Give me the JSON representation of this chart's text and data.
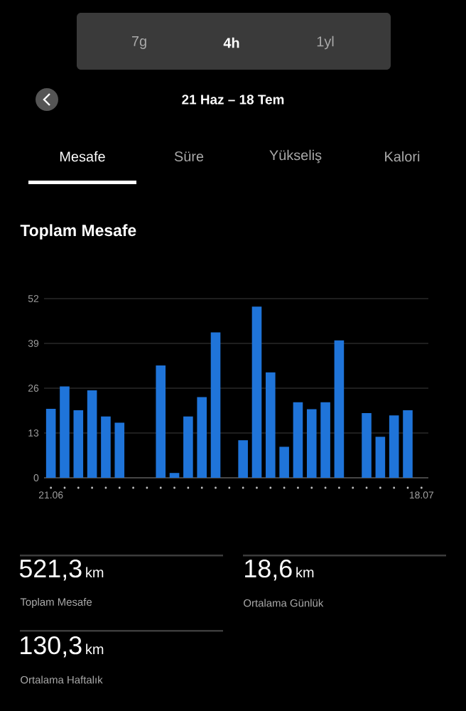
{
  "chart_data": {
    "type": "bar",
    "title": "Toplam Mesafe",
    "subtitle": "21 Haz – 18 Tem",
    "categories": [
      "21.06",
      null,
      null,
      null,
      null,
      null,
      null,
      null,
      null,
      null,
      null,
      null,
      null,
      null,
      null,
      null,
      null,
      null,
      null,
      null,
      null,
      null,
      null,
      null,
      null,
      null,
      null,
      "18.07"
    ],
    "values": [
      20,
      26.5,
      19.6,
      25.4,
      17.8,
      16,
      null,
      null,
      32.6,
      1.4,
      17.8,
      23.4,
      42.2,
      null,
      10.9,
      49.7,
      30.6,
      9,
      21.9,
      19.9,
      21.9,
      39.9,
      null,
      18.8,
      11.9,
      18.1,
      19.6,
      null
    ],
    "color": "#1f74d9",
    "ylim": [
      0,
      52
    ],
    "yticks": [
      0,
      13,
      26,
      39,
      52
    ],
    "grid": "y",
    "annotations": [
      "7g",
      "4h",
      "1yl",
      "Mesafe",
      "Süre",
      "Yükseliş",
      "Kalori",
      "521,3",
      "km",
      "Toplam Mesafe",
      "18,6",
      "km",
      "Ortalama Günlük",
      "130,3",
      "km",
      "Ortalama Haftalık"
    ]
  }
}
